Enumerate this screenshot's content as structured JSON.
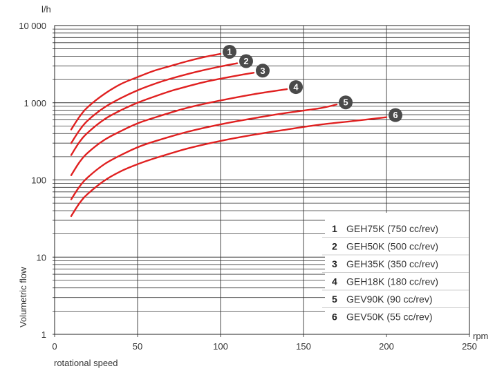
{
  "chart_data": {
    "type": "line",
    "title": "",
    "xlabel": "rotational speed",
    "ylabel": "Volumetric flow",
    "x_unit": "rpm",
    "y_unit": "l/h",
    "xlim": [
      0,
      250
    ],
    "ylim": [
      1,
      10000
    ],
    "y_scale": "log",
    "grid": true,
    "legend_position": "bottom-right",
    "x_ticks": [
      {
        "value": 0,
        "label": "0"
      },
      {
        "value": 50,
        "label": "50"
      },
      {
        "value": 100,
        "label": "100"
      },
      {
        "value": 150,
        "label": "150"
      },
      {
        "value": 200,
        "label": "200"
      },
      {
        "value": 250,
        "label": "250"
      }
    ],
    "y_ticks": [
      {
        "value": 1,
        "label": "1"
      },
      {
        "value": 10,
        "label": "10"
      },
      {
        "value": 100,
        "label": "100"
      },
      {
        "value": 1000,
        "label": "1 000"
      },
      {
        "value": 10000,
        "label": "10 000"
      }
    ],
    "series": [
      {
        "id": "1",
        "name": "GEH75K (750 cc/rev)",
        "color": "#e02020",
        "x": [
          10,
          15,
          20,
          30,
          40,
          50,
          60,
          70,
          80,
          90,
          100
        ],
        "y": [
          450,
          660,
          880,
          1300,
          1750,
          2150,
          2600,
          3000,
          3450,
          3900,
          4300
        ]
      },
      {
        "id": "2",
        "name": "GEH50K (500 cc/rev)",
        "color": "#e02020",
        "x": [
          10,
          15,
          20,
          30,
          40,
          50,
          60,
          70,
          80,
          90,
          100,
          110
        ],
        "y": [
          300,
          440,
          590,
          870,
          1150,
          1450,
          1750,
          2050,
          2350,
          2650,
          2950,
          3250
        ]
      },
      {
        "id": "3",
        "name": "GEH35K (350 cc/rev)",
        "color": "#e02020",
        "x": [
          10,
          15,
          20,
          30,
          40,
          50,
          60,
          70,
          80,
          90,
          100,
          110,
          120
        ],
        "y": [
          210,
          310,
          410,
          610,
          800,
          1000,
          1200,
          1420,
          1630,
          1850,
          2050,
          2250,
          2450
        ]
      },
      {
        "id": "4",
        "name": "GEH18K (180 cc/rev)",
        "color": "#e02020",
        "x": [
          10,
          15,
          20,
          30,
          40,
          50,
          60,
          80,
          100,
          120,
          140
        ],
        "y": [
          115,
          170,
          225,
          330,
          430,
          540,
          640,
          860,
          1070,
          1290,
          1500
        ]
      },
      {
        "id": "5",
        "name": "GEV90K (90 cc/rev)",
        "color": "#e02020",
        "x": [
          10,
          15,
          20,
          30,
          40,
          50,
          60,
          80,
          100,
          120,
          140,
          160,
          170
        ],
        "y": [
          56,
          82,
          108,
          160,
          210,
          265,
          315,
          420,
          525,
          630,
          740,
          850,
          950
        ]
      },
      {
        "id": "6",
        "name": "GEV50K (55 cc/rev)",
        "color": "#e02020",
        "x": [
          10,
          15,
          20,
          30,
          40,
          50,
          60,
          80,
          100,
          120,
          140,
          160,
          180,
          200
        ],
        "y": [
          34,
          50,
          66,
          98,
          130,
          160,
          190,
          255,
          320,
          385,
          450,
          520,
          580,
          650
        ]
      }
    ]
  }
}
